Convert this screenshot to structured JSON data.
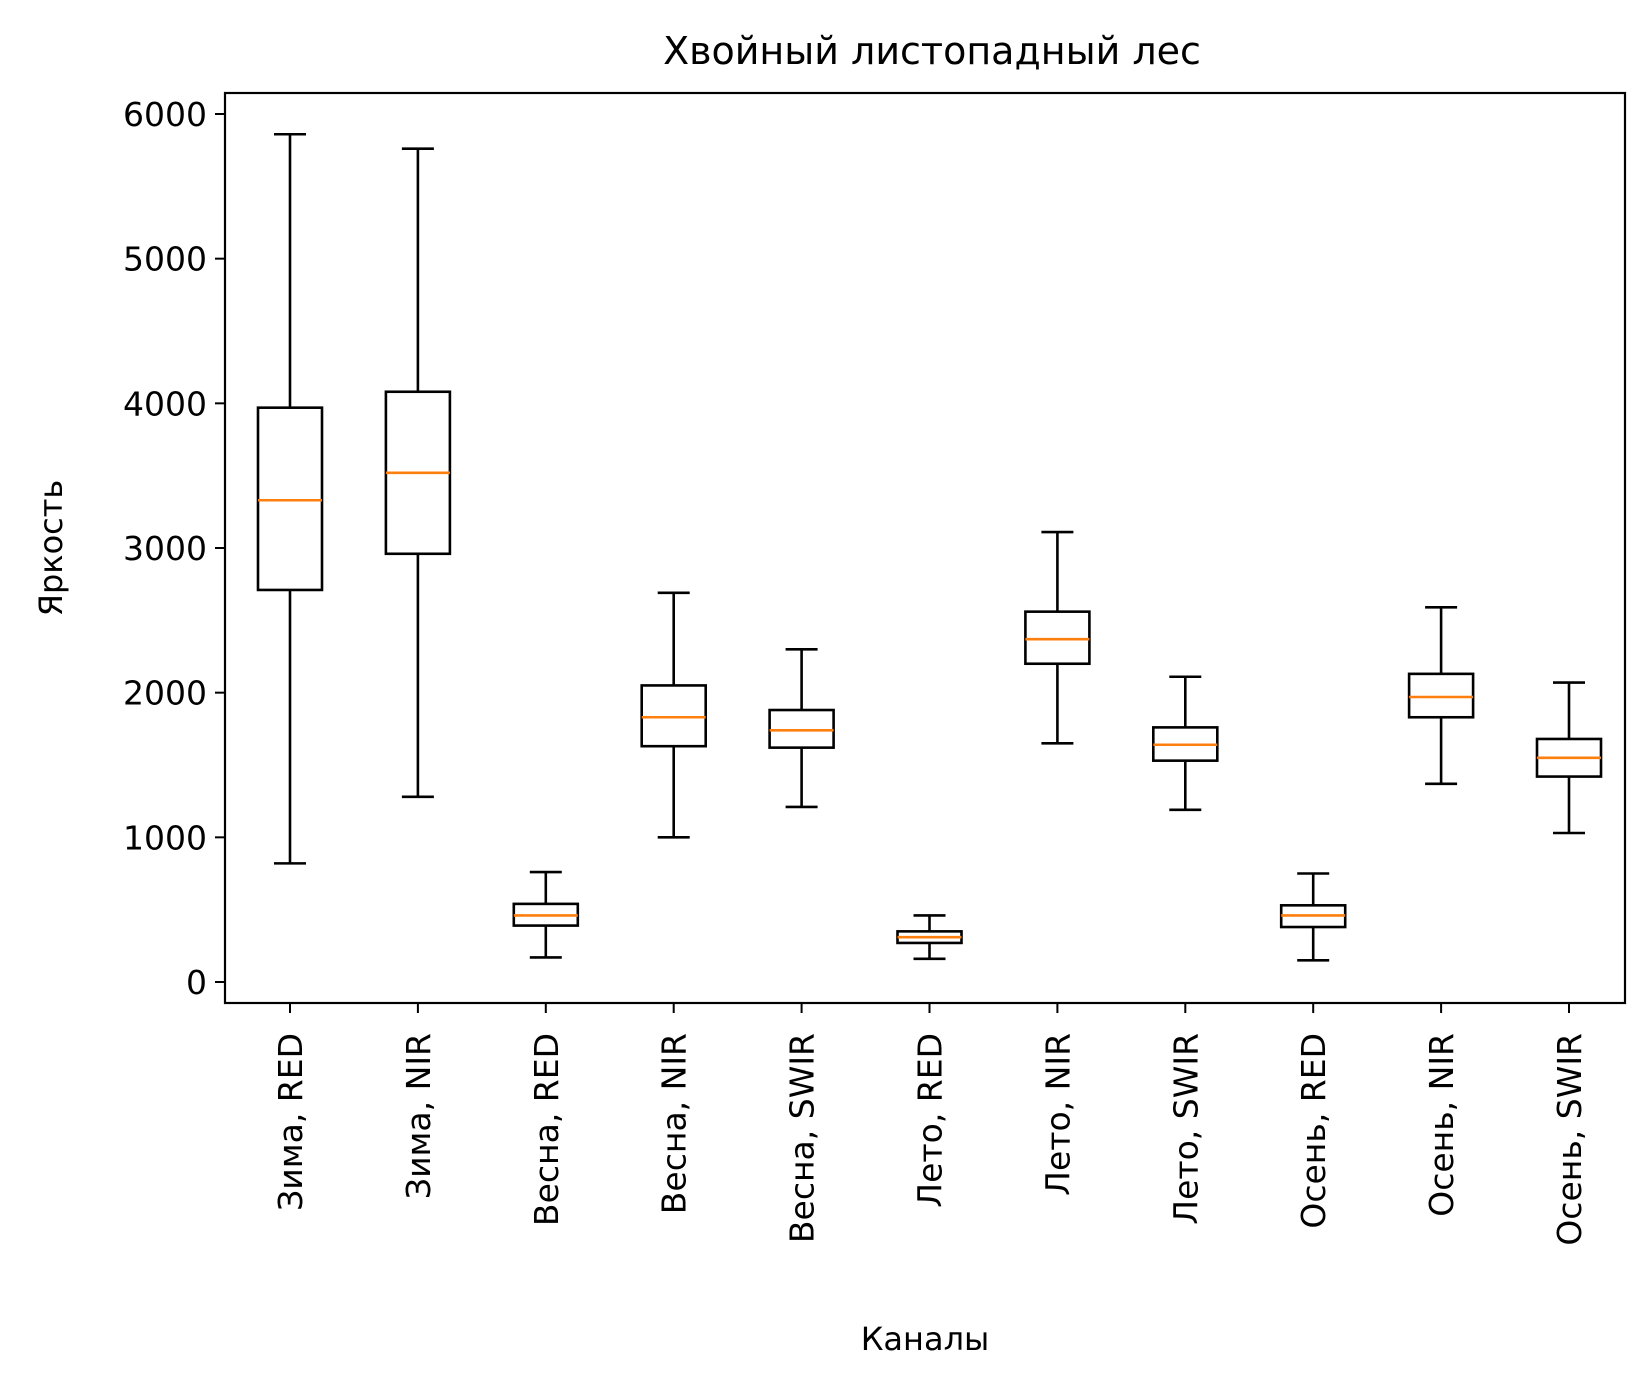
{
  "chart_data": {
    "type": "boxplot",
    "title": "Хвойный листопадный лес",
    "xlabel": "Каналы",
    "ylabel": "Яркость",
    "ylim": [
      -150,
      6150
    ],
    "yticks": [
      0,
      1000,
      2000,
      3000,
      4000,
      5000,
      6000
    ],
    "grid": false,
    "colors": {
      "box": "#000000",
      "median": "#ff7f0e"
    },
    "categories": [
      "Зима, RED",
      "Зима, NIR",
      "Весна, RED",
      "Весна, NIR",
      "Весна, SWIR",
      "Лето, RED",
      "Лето, NIR",
      "Лето, SWIR",
      "Осень, RED",
      "Осень, NIR",
      "Осень, SWIR"
    ],
    "boxes": [
      {
        "whisker_low": 820,
        "q1": 2710,
        "median": 3330,
        "q3": 3970,
        "whisker_high": 5860
      },
      {
        "whisker_low": 1280,
        "q1": 2960,
        "median": 3520,
        "q3": 4080,
        "whisker_high": 5760
      },
      {
        "whisker_low": 170,
        "q1": 390,
        "median": 460,
        "q3": 540,
        "whisker_high": 760
      },
      {
        "whisker_low": 1000,
        "q1": 1630,
        "median": 1830,
        "q3": 2050,
        "whisker_high": 2690
      },
      {
        "whisker_low": 1210,
        "q1": 1620,
        "median": 1740,
        "q3": 1880,
        "whisker_high": 2300
      },
      {
        "whisker_low": 160,
        "q1": 270,
        "median": 310,
        "q3": 350,
        "whisker_high": 460
      },
      {
        "whisker_low": 1650,
        "q1": 2200,
        "median": 2370,
        "q3": 2560,
        "whisker_high": 3110
      },
      {
        "whisker_low": 1190,
        "q1": 1530,
        "median": 1640,
        "q3": 1760,
        "whisker_high": 2110
      },
      {
        "whisker_low": 150,
        "q1": 380,
        "median": 460,
        "q3": 530,
        "whisker_high": 750
      },
      {
        "whisker_low": 1370,
        "q1": 1830,
        "median": 1970,
        "q3": 2130,
        "whisker_high": 2590
      },
      {
        "whisker_low": 1030,
        "q1": 1420,
        "median": 1550,
        "q3": 1680,
        "whisker_high": 2070
      }
    ]
  }
}
